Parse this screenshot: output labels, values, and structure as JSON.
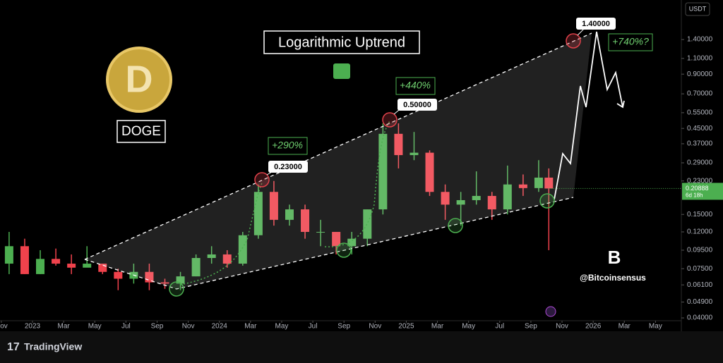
{
  "chart_data": {
    "type": "candlestick",
    "title": "Logarithmic Uptrend",
    "symbol": "DOGE",
    "currency": "USDT",
    "brand": "TradingView",
    "watermark": "@Bitcoinsensus",
    "countdown": "6d 18h",
    "annotations": [
      "+290%",
      "+440%",
      "+740%?",
      "0.23000",
      "0.50000",
      "1.40000"
    ],
    "log_scale": true,
    "grid": false,
    "up_color": "#4caf50",
    "down_color": "#f0424c",
    "x": [
      -1.5,
      -0.5,
      0.5,
      1.5,
      2.5,
      3.5,
      4.5,
      5.5,
      6.5,
      7.5,
      8.5,
      9.5,
      10.5,
      11.5,
      12.5,
      13.5,
      14.5,
      15.5,
      16.5,
      17.5,
      18.5,
      19.5,
      20.5,
      21.5,
      22.5,
      23.5,
      24.5,
      25.5,
      26.5,
      27.5,
      28.5,
      29.5,
      30.5,
      31.5,
      32.5,
      33.15
    ],
    "open": [
      0.08,
      0.1,
      0.07,
      0.085,
      0.08,
      0.076,
      0.08,
      0.072,
      0.066,
      0.072,
      0.063,
      0.062,
      0.068,
      0.086,
      0.09,
      0.08,
      0.115,
      0.2,
      0.14,
      0.16,
      0.12,
      0.12,
      0.1,
      0.11,
      0.16,
      0.42,
      0.32,
      0.33,
      0.2,
      0.17,
      0.18,
      0.19,
      0.16,
      0.22,
      0.21,
      0.24
    ],
    "high": [
      0.12,
      0.11,
      0.095,
      0.097,
      0.09,
      0.1,
      0.08,
      0.075,
      0.08,
      0.08,
      0.066,
      0.072,
      0.09,
      0.1,
      0.095,
      0.12,
      0.22,
      0.23,
      0.17,
      0.17,
      0.14,
      0.12,
      0.12,
      0.16,
      0.48,
      0.48,
      0.43,
      0.34,
      0.22,
      0.2,
      0.26,
      0.2,
      0.28,
      0.25,
      0.3,
      0.27
    ],
    "low": [
      0.07,
      0.07,
      0.07,
      0.078,
      0.07,
      0.077,
      0.07,
      0.057,
      0.062,
      0.057,
      0.058,
      0.057,
      0.068,
      0.08,
      0.076,
      0.078,
      0.11,
      0.13,
      0.13,
      0.11,
      0.1,
      0.09,
      0.09,
      0.1,
      0.15,
      0.27,
      0.3,
      0.19,
      0.14,
      0.13,
      0.17,
      0.14,
      0.15,
      0.19,
      0.2,
      0.095
    ],
    "close": [
      0.1,
      0.07,
      0.085,
      0.08,
      0.076,
      0.08,
      0.072,
      0.066,
      0.072,
      0.063,
      0.062,
      0.068,
      0.086,
      0.09,
      0.08,
      0.115,
      0.2,
      0.14,
      0.16,
      0.12,
      0.12,
      0.1,
      0.11,
      0.16,
      0.42,
      0.32,
      0.33,
      0.2,
      0.17,
      0.18,
      0.19,
      0.16,
      0.22,
      0.21,
      0.24,
      0.20888
    ],
    "xlim": [
      -2.085,
      41.66
    ],
    "xticks": [
      {
        "value": -2,
        "label": "Nov"
      },
      {
        "value": 0,
        "label": "2023"
      },
      {
        "value": 2,
        "label": "Mar"
      },
      {
        "value": 4,
        "label": "May"
      },
      {
        "value": 6,
        "label": "Jul"
      },
      {
        "value": 8,
        "label": "Sep"
      },
      {
        "value": 10,
        "label": "Nov"
      },
      {
        "value": 12,
        "label": "2024"
      },
      {
        "value": 14,
        "label": "Mar"
      },
      {
        "value": 16,
        "label": "May"
      },
      {
        "value": 18,
        "label": "Jul"
      },
      {
        "value": 20,
        "label": "Sep"
      },
      {
        "value": 22,
        "label": "Nov"
      },
      {
        "value": 24,
        "label": "2025"
      },
      {
        "value": 26,
        "label": "Mar"
      },
      {
        "value": 28,
        "label": "May"
      },
      {
        "value": 30,
        "label": "Jul"
      },
      {
        "value": 32,
        "label": "Sep"
      },
      {
        "value": 34,
        "label": "Nov"
      },
      {
        "value": 36,
        "label": "2026"
      },
      {
        "value": 38,
        "label": "Mar"
      },
      {
        "value": 40,
        "label": "May"
      }
    ],
    "ylim": [
      0.0386,
      2.32
    ],
    "yticks": [
      {
        "value": 1.4,
        "label": "1.40000"
      },
      {
        "value": 1.1,
        "label": "1.10000"
      },
      {
        "value": 0.9,
        "label": "0.90000"
      },
      {
        "value": 0.7,
        "label": "0.70000"
      },
      {
        "value": 0.55,
        "label": "0.55000"
      },
      {
        "value": 0.45,
        "label": "0.45000"
      },
      {
        "value": 0.37,
        "label": "0.37000"
      },
      {
        "value": 0.29,
        "label": "0.29000"
      },
      {
        "value": 0.23,
        "label": "0.23000"
      },
      {
        "value": 0.15,
        "label": "0.15000"
      },
      {
        "value": 0.12,
        "label": "0.12000"
      },
      {
        "value": 0.095,
        "label": "0.09500"
      },
      {
        "value": 0.075,
        "label": "0.07500"
      },
      {
        "value": 0.061,
        "label": "0.06100"
      },
      {
        "value": 0.049,
        "label": "0.04900"
      },
      {
        "value": 0.04,
        "label": "0.04000"
      }
    ]
  }
}
